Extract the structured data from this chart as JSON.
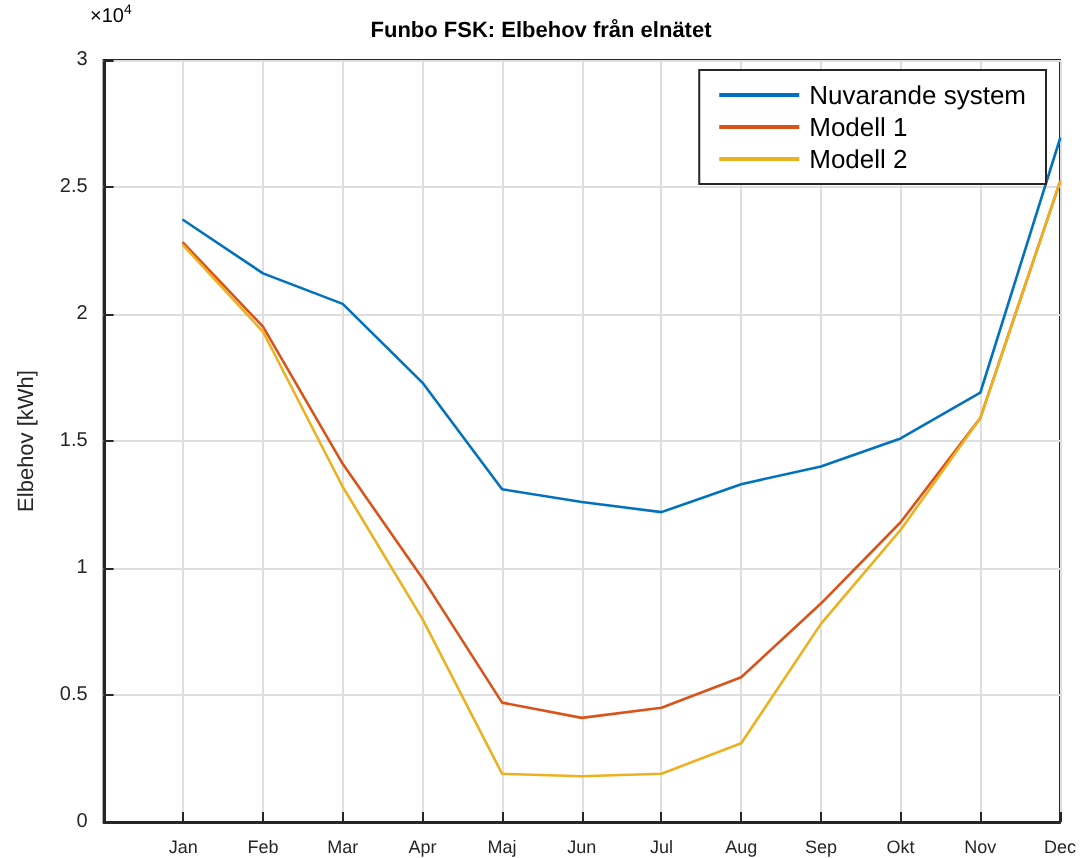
{
  "chart_data": {
    "type": "line",
    "title": "Funbo FSK: Elbehov från elnätet",
    "ylabel": "Elbehov [kWh]",
    "annotations": [
      "×10$^{4}$"
    ],
    "categories": [
      "Jan",
      "Feb",
      "Mar",
      "Apr",
      "Maj",
      "Jun",
      "Jul",
      "Aug",
      "Sep",
      "Okt",
      "Nov",
      "Dec"
    ],
    "ylim": [
      0,
      3
    ],
    "yticks": [
      0,
      0.5,
      1,
      1.5,
      2,
      2.5,
      3
    ],
    "series": [
      {
        "name": "Nuvarande system",
        "color": "#0072bd",
        "values": [
          2.37,
          2.16,
          2.04,
          1.73,
          1.31,
          1.26,
          1.22,
          1.33,
          1.4,
          1.51,
          1.69,
          2.69
        ]
      },
      {
        "name": "Modell 1",
        "color": "#d95319",
        "values": [
          2.28,
          1.95,
          1.41,
          0.96,
          0.47,
          0.41,
          0.45,
          0.57,
          0.86,
          1.18,
          1.59,
          2.52
        ]
      },
      {
        "name": "Modell 2",
        "color": "#edb120",
        "values": [
          2.27,
          1.93,
          1.32,
          0.8,
          0.19,
          0.18,
          0.19,
          0.31,
          0.78,
          1.15,
          1.59,
          2.52
        ]
      }
    ],
    "grid": true,
    "legend": "top right",
    "marker": "none",
    "line_style": "solid"
  }
}
